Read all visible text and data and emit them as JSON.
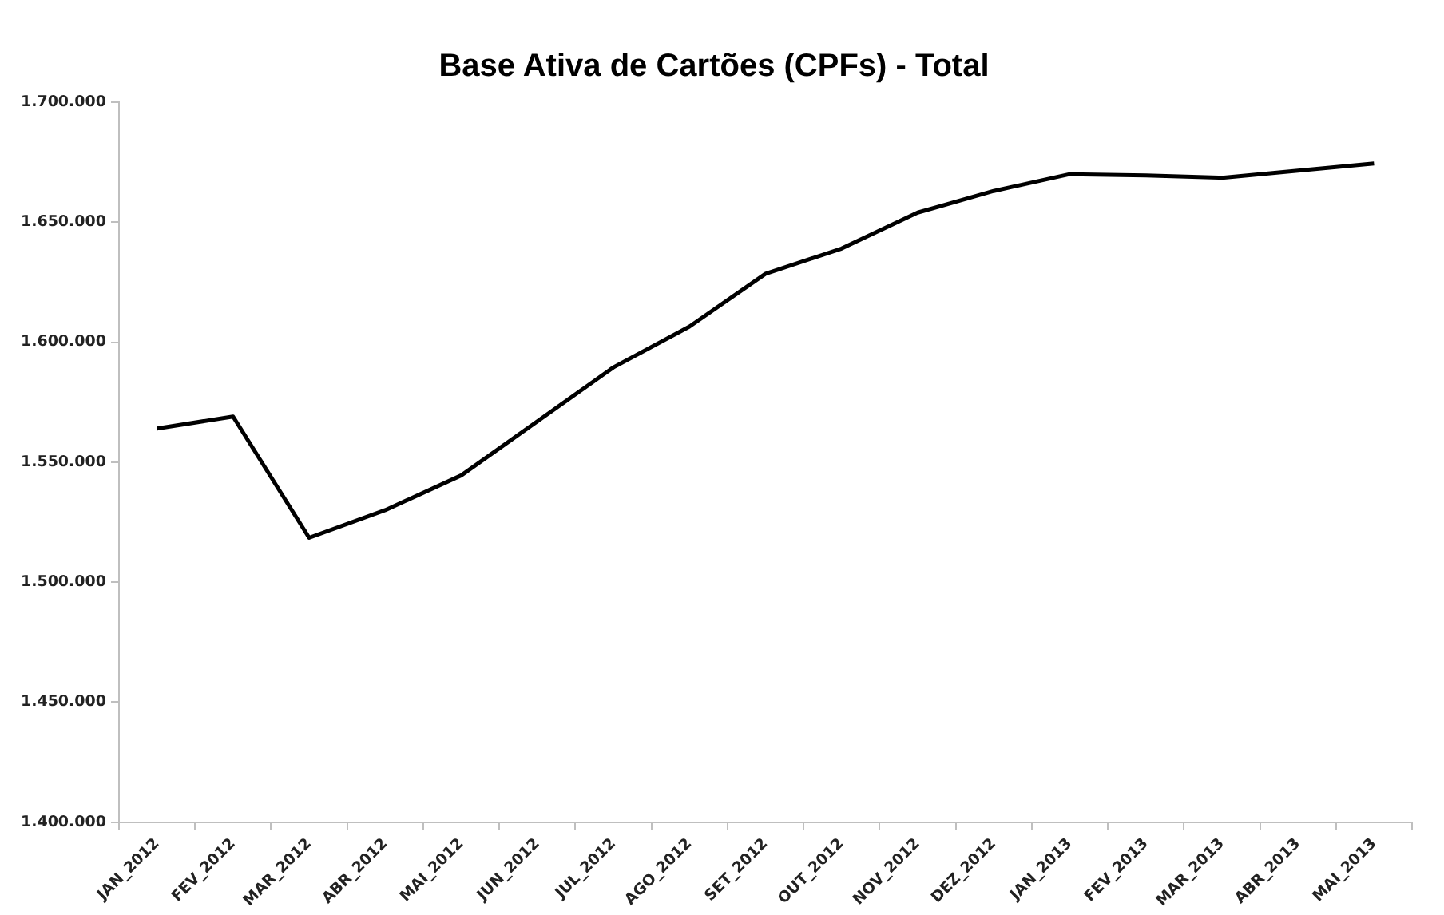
{
  "chart_data": {
    "type": "line",
    "title": "Base Ativa de Cartões (CPFs) - Total",
    "categories": [
      "JAN_2012",
      "FEV_2012",
      "MAR_2012",
      "ABR_2012",
      "MAI_2012",
      "JUN_2012",
      "JUL_2012",
      "AGO_2012",
      "SET_2012",
      "OUT_2012",
      "NOV_2012",
      "DEZ_2012",
      "JAN_2013",
      "FEV_2013",
      "MAR_2013",
      "ABR_2013",
      "MAI_2013"
    ],
    "series": [
      {
        "color": "#000000",
        "values": [
          1564000,
          1569000,
          1518500,
          1530000,
          1544500,
          1567000,
          1589500,
          1606500,
          1628500,
          1639000,
          1654000,
          1663000,
          1670000,
          1669500,
          1668500,
          1671500,
          1674500
        ]
      }
    ],
    "ylim": [
      1400000,
      1700000
    ],
    "yticks": [
      {
        "value": 1400000,
        "label": "1.400.000"
      },
      {
        "value": 1450000,
        "label": "1.450.000"
      },
      {
        "value": 1500000,
        "label": "1.500.000"
      },
      {
        "value": 1550000,
        "label": "1.550.000"
      },
      {
        "value": 1600000,
        "label": "1.600.000"
      },
      {
        "value": 1650000,
        "label": "1.650.000"
      },
      {
        "value": 1700000,
        "label": "1.700.000"
      }
    ],
    "grid": false,
    "legend": false,
    "marker": "none",
    "line_style": "solid"
  }
}
